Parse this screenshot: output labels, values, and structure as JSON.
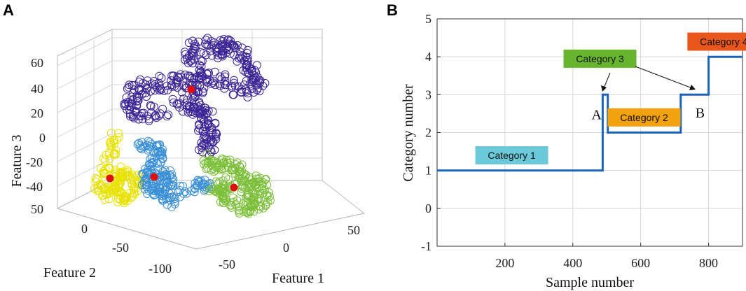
{
  "panels": [
    {
      "label": "A"
    },
    {
      "label": "B"
    }
  ],
  "colors": {
    "purple": "#3b2496",
    "blue": "#3a8fd6",
    "yellow": "#e8e200",
    "green": "#7cbf3a",
    "centroid": "#e01010",
    "line": "#1d63b8",
    "cat1": "#6cc9d9",
    "cat2": "#f3a20f",
    "cat3": "#67b52f",
    "cat4": "#e8561d"
  },
  "chart_data": [
    {
      "type": "scatter",
      "title": "",
      "xlabel": "Feature 1",
      "ylabel": "Feature 2",
      "zlabel": "Feature 3",
      "x_ticks": [
        "-50",
        "0",
        "50"
      ],
      "y_ticks": [
        "50",
        "0",
        "-50",
        "-100"
      ],
      "z_ticks": [
        "60",
        "40",
        "20",
        "0",
        "-20",
        "-40"
      ],
      "clusters": [
        {
          "name": "purple",
          "color": "#3b2496",
          "centroid": [
            20,
            30,
            40
          ]
        },
        {
          "name": "yellow",
          "color": "#e8e200",
          "centroid": [
            -40,
            40,
            -30
          ]
        },
        {
          "name": "blue",
          "color": "#3a8fd6",
          "centroid": [
            -20,
            20,
            -30
          ]
        },
        {
          "name": "green",
          "color": "#7cbf3a",
          "centroid": [
            30,
            -30,
            -30
          ]
        }
      ],
      "legend": false
    },
    {
      "type": "line",
      "title": "",
      "xlabel": "Sample number",
      "ylabel": "Category number",
      "xlim": [
        0,
        900
      ],
      "ylim": [
        -1,
        5
      ],
      "x_ticks": [
        200,
        400,
        600,
        800
      ],
      "y_ticks": [
        -1,
        0,
        1,
        2,
        3,
        4,
        5
      ],
      "grid": true,
      "series": [
        {
          "name": "Category",
          "x": [
            0,
            488,
            488,
            503,
            503,
            718,
            718,
            800,
            800,
            900
          ],
          "y": [
            1,
            1,
            3,
            3,
            2,
            2,
            3,
            3,
            4,
            4
          ]
        }
      ],
      "annotations": [
        {
          "label": "Category 1",
          "x": 220,
          "y": 1.4,
          "color": "#6cc9d9"
        },
        {
          "label": "Category 2",
          "x": 610,
          "y": 2.4,
          "color": "#f3a20f"
        },
        {
          "label": "Category 3",
          "x": 480,
          "y": 3.95,
          "color": "#67b52f"
        },
        {
          "label": "Category 4",
          "x": 845,
          "y": 4.4,
          "color": "#e8561d"
        }
      ],
      "letters": [
        {
          "label": "A",
          "x": 470,
          "y": 2.35
        },
        {
          "label": "B",
          "x": 775,
          "y": 2.4
        }
      ]
    }
  ]
}
